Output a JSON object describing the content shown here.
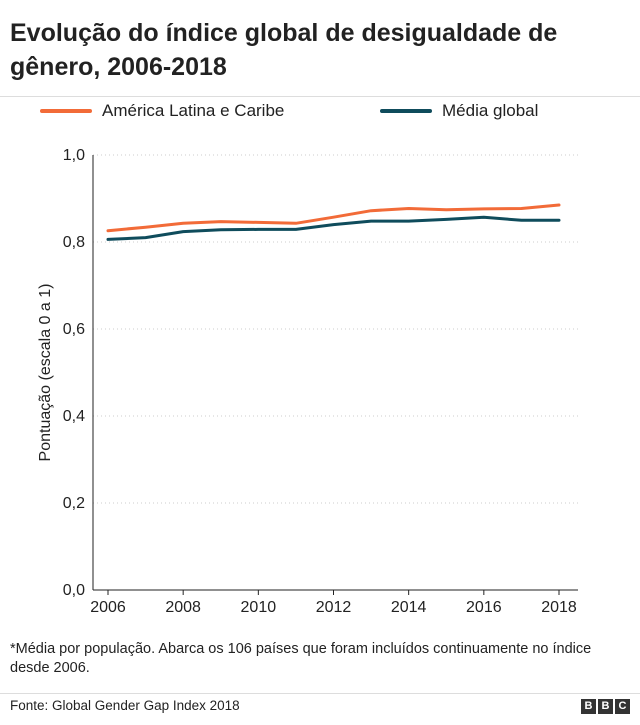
{
  "title": "Evolução do índice global de desigualdade de gênero, 2006-2018",
  "legend": [
    {
      "label": "América Latina e Caribe",
      "color": "#f26b38"
    },
    {
      "label": "Média global",
      "color": "#0f4c5c"
    }
  ],
  "footnote": "*Média por população. Abarca os 106 países que foram incluídos continuamente no índice desde 2006.",
  "source": "Fonte: Global Gender Gap Index 2018",
  "logo": [
    "B",
    "B",
    "C"
  ],
  "chart_data": {
    "type": "line",
    "ylabel": "Pontuação (escala 0 a 1)",
    "xlabel": "",
    "ylim": [
      0,
      1
    ],
    "yticks": [
      0.0,
      0.2,
      0.4,
      0.6,
      0.8,
      1.0
    ],
    "ytick_labels": [
      "0,0",
      "0,2",
      "0,4",
      "0,6",
      "0,8",
      "1,0"
    ],
    "xlim": [
      2006,
      2018
    ],
    "xticks": [
      2006,
      2008,
      2010,
      2012,
      2014,
      2016,
      2018
    ],
    "x": [
      2006,
      2007,
      2008,
      2009,
      2010,
      2011,
      2012,
      2013,
      2014,
      2015,
      2016,
      2017,
      2018
    ],
    "grid": "horizontal-dotted",
    "series": [
      {
        "name": "América Latina e Caribe",
        "color": "#f26b38",
        "values": [
          0.826,
          0.834,
          0.843,
          0.847,
          0.845,
          0.843,
          0.857,
          0.872,
          0.877,
          0.874,
          0.876,
          0.877,
          0.885
        ]
      },
      {
        "name": "Média global",
        "color": "#0f4c5c",
        "values": [
          0.806,
          0.81,
          0.824,
          0.828,
          0.829,
          0.829,
          0.84,
          0.848,
          0.848,
          0.852,
          0.857,
          0.85,
          0.85
        ]
      }
    ]
  }
}
